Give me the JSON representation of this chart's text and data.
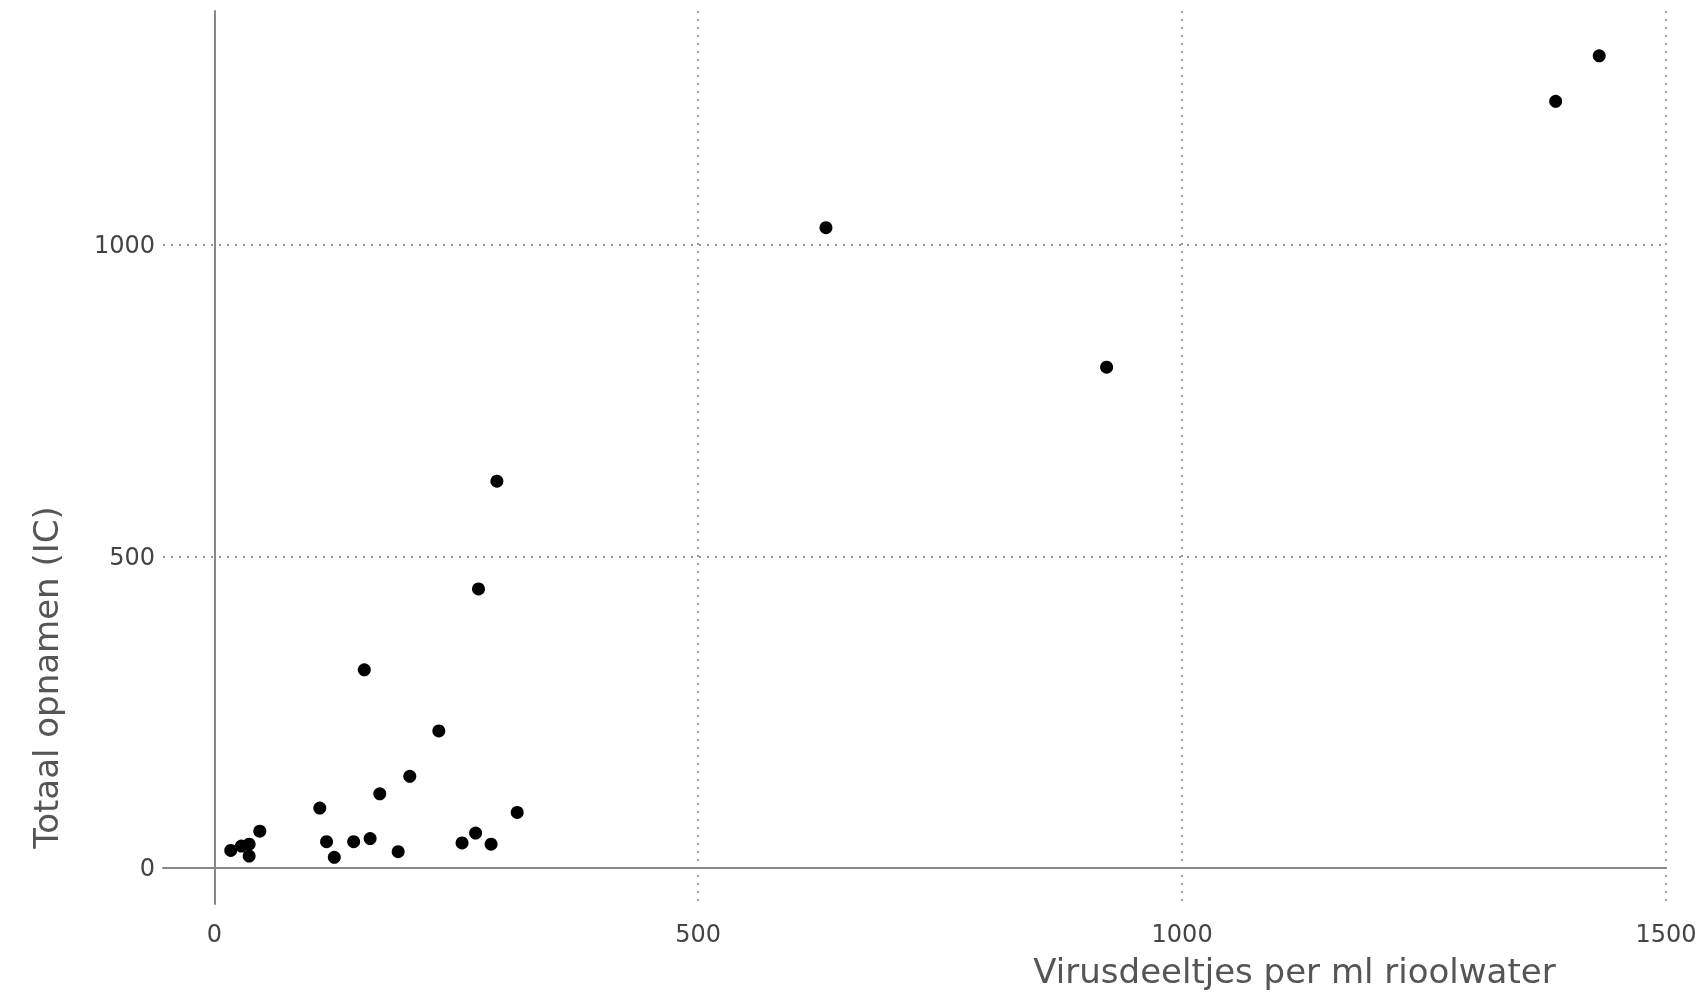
{
  "chart_data": {
    "type": "scatter",
    "xlabel": "Virusdeeltjes per ml rioolwater",
    "ylabel": "Totaal opnamen (IC)",
    "x": [
      17,
      28,
      36,
      36,
      47,
      109,
      116,
      124,
      144,
      155,
      161,
      171,
      190,
      202,
      232,
      256,
      270,
      273,
      286,
      292,
      313,
      632,
      922,
      1386,
      1431
    ],
    "values": [
      28,
      35,
      38,
      19,
      59,
      96,
      42,
      17,
      42,
      318,
      47,
      119,
      26,
      147,
      220,
      40,
      56,
      448,
      38,
      621,
      89,
      1028,
      804,
      1231,
      1304
    ],
    "color": "#000000",
    "marker": "circle",
    "xlim": [
      -53,
      1500
    ],
    "xticks": [
      0,
      500,
      1000,
      1500
    ],
    "ylim": [
      -58,
      1376
    ],
    "yticks": [
      0,
      500,
      1000
    ],
    "grid": true
  }
}
